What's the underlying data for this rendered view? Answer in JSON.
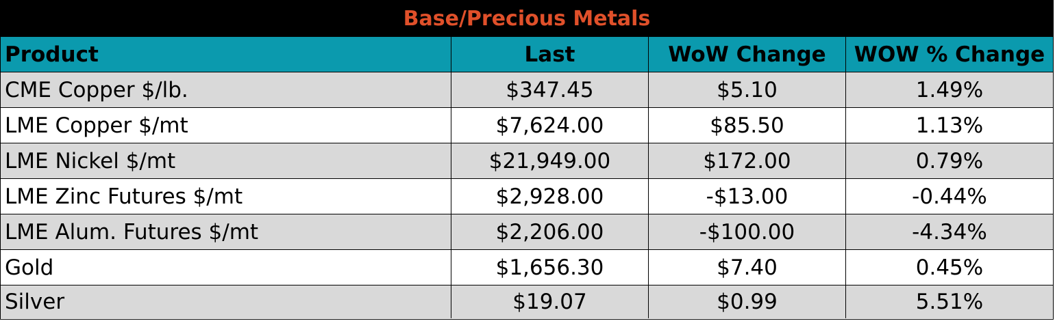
{
  "title": "Base/Precious Metals",
  "colors": {
    "title_bg": "#000000",
    "title_text": "#e0502a",
    "header_bg": "#0b9aae",
    "stripe_bg": "#d9d9d9"
  },
  "headers": {
    "product": "Product",
    "last": "Last",
    "wow_change": "WoW Change",
    "wow_pct_change": "WOW % Change"
  },
  "rows": [
    {
      "product": "CME Copper $/lb.",
      "last": "$347.45",
      "wow_change": "$5.10",
      "wow_pct_change": "1.49%"
    },
    {
      "product": "LME Copper $/mt",
      "last": "$7,624.00",
      "wow_change": "$85.50",
      "wow_pct_change": "1.13%"
    },
    {
      "product": "LME Nickel $/mt",
      "last": "$21,949.00",
      "wow_change": "$172.00",
      "wow_pct_change": "0.79%"
    },
    {
      "product": "LME Zinc Futures $/mt",
      "last": "$2,928.00",
      "wow_change": "-$13.00",
      "wow_pct_change": "-0.44%"
    },
    {
      "product": "LME Alum. Futures $/mt",
      "last": "$2,206.00",
      "wow_change": "-$100.00",
      "wow_pct_change": "-4.34%"
    },
    {
      "product": "Gold",
      "last": "$1,656.30",
      "wow_change": "$7.40",
      "wow_pct_change": "0.45%"
    },
    {
      "product": "Silver",
      "last": "$19.07",
      "wow_change": "$0.99",
      "wow_pct_change": "5.51%"
    }
  ]
}
